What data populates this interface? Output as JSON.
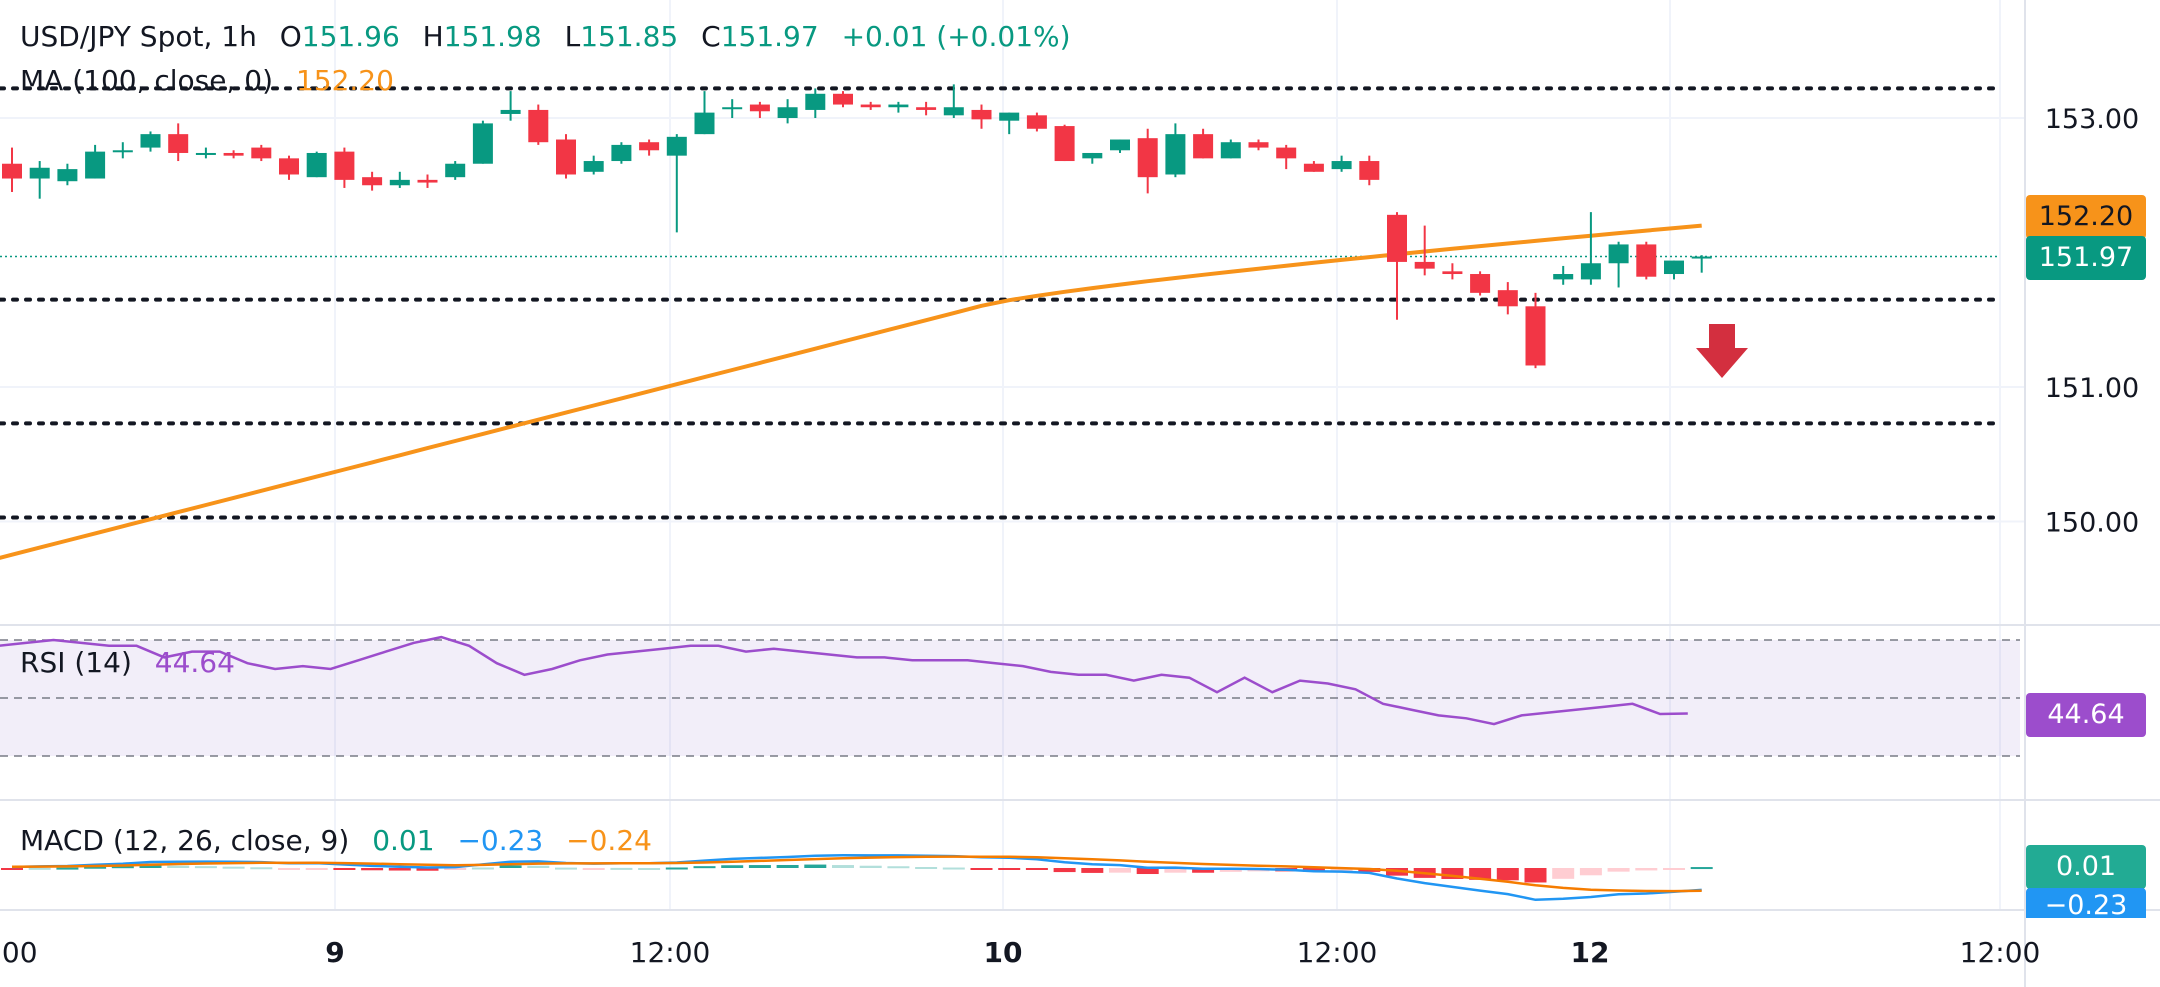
{
  "header": {
    "symbol": "USD/JPY Spot",
    "interval": "1h",
    "open_label": "O",
    "open": "151.96",
    "high_label": "H",
    "high": "151.98",
    "low_label": "L",
    "low": "151.85",
    "close_label": "C",
    "close": "151.97",
    "change": "+0.01 (+0.01%)"
  },
  "ma_legend": {
    "label": "MA (100, close, 0)",
    "value": "152.20"
  },
  "rsi_legend": {
    "label": "RSI (14)",
    "value": "44.64"
  },
  "macd_legend": {
    "label": "MACD (12, 26, close, 9)",
    "hist": "0.01",
    "macd": "−0.23",
    "signal": "−0.24"
  },
  "price_tags": {
    "ma": "152.20",
    "last": "151.97",
    "rsi": "44.64",
    "macd_hist": "0.01",
    "macd": "−0.23"
  },
  "colors": {
    "up": "#089981",
    "down": "#f23645",
    "ma": "#f7931a",
    "rsi": "#9c4dcc",
    "macd": "#2196f3",
    "signal": "#f57c00",
    "hist_up_light": "#b2dfdb",
    "hist_down_light": "#ffcdd2"
  },
  "chart_data": {
    "type": "candlestick",
    "price_axis": {
      "ticks": [
        150.0,
        151.0,
        153.0
      ],
      "tick_labels": [
        "150.00",
        "151.00",
        "153.00"
      ]
    },
    "time_axis": {
      "labels": [
        ":00",
        "9",
        "12:00",
        "10",
        "12:00",
        "12",
        "12:00"
      ]
    },
    "horizontal_levels": [
      153.22,
      151.65,
      150.73,
      150.03
    ],
    "annotation": "down-arrow",
    "candles": [
      [
        152.66,
        152.78,
        152.45,
        152.55
      ],
      [
        152.55,
        152.68,
        152.4,
        152.63
      ],
      [
        152.53,
        152.66,
        152.5,
        152.62
      ],
      [
        152.55,
        152.8,
        152.55,
        152.75
      ],
      [
        152.75,
        152.82,
        152.7,
        152.76
      ],
      [
        152.78,
        152.9,
        152.75,
        152.88
      ],
      [
        152.88,
        152.96,
        152.68,
        152.74
      ],
      [
        152.74,
        152.78,
        152.7,
        152.74
      ],
      [
        152.74,
        152.76,
        152.7,
        152.72
      ],
      [
        152.78,
        152.8,
        152.68,
        152.7
      ],
      [
        152.7,
        152.72,
        152.54,
        152.58
      ],
      [
        152.56,
        152.75,
        152.56,
        152.74
      ],
      [
        152.75,
        152.78,
        152.48,
        152.54
      ],
      [
        152.56,
        152.6,
        152.46,
        152.5
      ],
      [
        152.5,
        152.6,
        152.48,
        152.54
      ],
      [
        152.54,
        152.58,
        152.48,
        152.52
      ],
      [
        152.56,
        152.68,
        152.54,
        152.66
      ],
      [
        152.66,
        152.98,
        152.66,
        152.96
      ],
      [
        153.03,
        153.2,
        152.98,
        153.06
      ],
      [
        153.06,
        153.1,
        152.8,
        152.82
      ],
      [
        152.84,
        152.88,
        152.55,
        152.58
      ],
      [
        152.6,
        152.72,
        152.58,
        152.68
      ],
      [
        152.68,
        152.82,
        152.66,
        152.8
      ],
      [
        152.82,
        152.84,
        152.72,
        152.76
      ],
      [
        152.72,
        152.88,
        152.15,
        152.86
      ],
      [
        152.88,
        153.2,
        152.88,
        153.04
      ],
      [
        153.07,
        153.14,
        153.0,
        153.08
      ],
      [
        153.1,
        153.12,
        153.0,
        153.05
      ],
      [
        153.0,
        153.14,
        152.96,
        153.08
      ],
      [
        153.06,
        153.22,
        153.0,
        153.18
      ],
      [
        153.18,
        153.2,
        153.08,
        153.1
      ],
      [
        153.1,
        153.12,
        153.06,
        153.08
      ],
      [
        153.08,
        153.12,
        153.04,
        153.1
      ],
      [
        153.08,
        153.12,
        153.02,
        153.06
      ],
      [
        153.02,
        153.25,
        153.0,
        153.08
      ],
      [
        153.06,
        153.1,
        152.92,
        152.99
      ],
      [
        152.98,
        153.04,
        152.88,
        153.04
      ],
      [
        153.02,
        153.04,
        152.9,
        152.92
      ],
      [
        152.94,
        152.95,
        152.68,
        152.68
      ],
      [
        152.7,
        152.74,
        152.66,
        152.74
      ],
      [
        152.76,
        152.84,
        152.74,
        152.84
      ],
      [
        152.85,
        152.92,
        152.44,
        152.56
      ],
      [
        152.58,
        152.96,
        152.56,
        152.88
      ],
      [
        152.88,
        152.92,
        152.7,
        152.7
      ],
      [
        152.7,
        152.84,
        152.7,
        152.82
      ],
      [
        152.82,
        152.84,
        152.76,
        152.78
      ],
      [
        152.78,
        152.8,
        152.62,
        152.7
      ],
      [
        152.66,
        152.68,
        152.6,
        152.6
      ],
      [
        152.62,
        152.72,
        152.6,
        152.68
      ],
      [
        152.68,
        152.72,
        152.5,
        152.54
      ],
      [
        152.28,
        152.3,
        151.5,
        151.93
      ],
      [
        151.93,
        152.2,
        151.83,
        151.88
      ],
      [
        151.86,
        151.92,
        151.8,
        151.84
      ],
      [
        151.84,
        151.86,
        151.68,
        151.7
      ],
      [
        151.72,
        151.78,
        151.54,
        151.6
      ],
      [
        151.6,
        151.7,
        151.14,
        151.16
      ],
      [
        151.8,
        151.9,
        151.76,
        151.84
      ],
      [
        151.8,
        152.3,
        151.76,
        151.92
      ],
      [
        151.92,
        152.08,
        151.74,
        152.06
      ],
      [
        152.06,
        152.08,
        151.8,
        151.82
      ],
      [
        151.84,
        151.94,
        151.8,
        151.94
      ],
      [
        151.96,
        151.98,
        151.85,
        151.97
      ]
    ],
    "ma_100": {
      "last": 152.2
    },
    "rsi": {
      "levels": [
        70,
        50,
        30
      ],
      "values": [
        68,
        69,
        70,
        69,
        68,
        68,
        64,
        66,
        66,
        62,
        60,
        61,
        60,
        63,
        66,
        69,
        71,
        68,
        62,
        58,
        60,
        63,
        65,
        66,
        67,
        68,
        68,
        66,
        67,
        66,
        65,
        64,
        64,
        63,
        63,
        63,
        62,
        61,
        59,
        58,
        58,
        56,
        58,
        57,
        52,
        57,
        52,
        56,
        55,
        53,
        48,
        46,
        44,
        43,
        41,
        44,
        45,
        46,
        47,
        48,
        44.5,
        44.64
      ]
    },
    "macd": {
      "macd_last": -0.23,
      "signal_last": -0.24,
      "hist_last": 0.01
    }
  }
}
